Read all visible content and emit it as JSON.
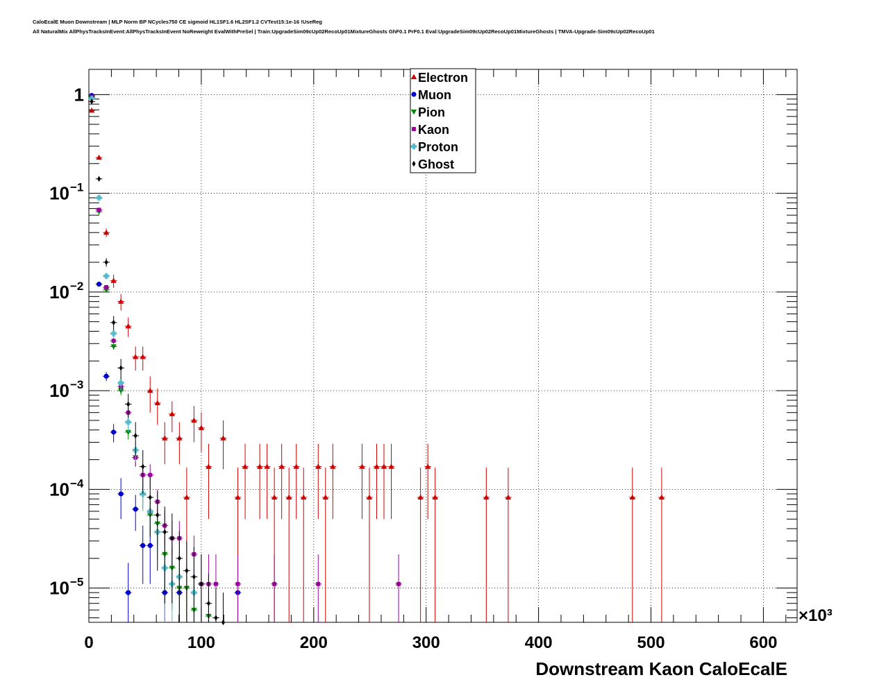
{
  "header": {
    "line1": "CaloEcalE Muon Downstream | MLP Norm BP NCycles750 CE sigmoid HL1SF1.6 HL2SF1.2 CVTest15:1e-16 !UseReg",
    "line2": "All NaturalMix AllPhysTracksInEvent:AllPhysTracksInEvent NoReweight EvalWithPreSel | Train:UpgradeSim09cUp02RecoUp01MixtureGhosts GhF0.1 PrF0.1 Eval:UpgradeSim09cUp02RecoUp01MixtureGhosts | TMVA-Upgrade-Sim09cUp02RecoUp01"
  },
  "chart_data": {
    "type": "scatter",
    "xlabel": "Downstream Kaon CaloEcalE",
    "x_multiplier": "×10³",
    "xlim": [
      0,
      630
    ],
    "ylim": [
      4.5e-06,
      1.8
    ],
    "y_scale": "log",
    "grid": true,
    "legend_placement": "top-center",
    "x_ticks": [
      "0",
      "100",
      "200",
      "300",
      "400",
      "500",
      "600"
    ],
    "y_ticks": [
      {
        "label": "1",
        "value": 1,
        "exp": ""
      },
      {
        "label": "10",
        "value": 0.1,
        "exp": "−1"
      },
      {
        "label": "10",
        "value": 0.01,
        "exp": "−2"
      },
      {
        "label": "10",
        "value": 0.001,
        "exp": "−3"
      },
      {
        "label": "10",
        "value": 0.0001,
        "exp": "−4"
      },
      {
        "label": "10",
        "value": 1e-05,
        "exp": "−5"
      }
    ],
    "series": [
      {
        "name": "Electron",
        "color": "#cc0000",
        "marker": "triangle-up",
        "x_error": 3,
        "points": [
          [
            2.5,
            0.69,
            0
          ],
          [
            9,
            0.23,
            0.01
          ],
          [
            15.5,
            0.04,
            0.004
          ],
          [
            22,
            0.013,
            0.002
          ],
          [
            28.5,
            0.008,
            0.0015
          ],
          [
            35,
            0.0045,
            0.001
          ],
          [
            41.5,
            0.0022,
            0.0006
          ],
          [
            48,
            0.0022,
            0.0006
          ],
          [
            54.5,
            0.001,
            0.0004
          ],
          [
            61,
            0.00075,
            0.0003
          ],
          [
            67.5,
            0.00033,
            0.00015
          ],
          [
            74,
            0.00058,
            0.0002
          ],
          [
            80.5,
            0.00033,
            0.00015
          ],
          [
            87,
            8.3e-05,
            8.3e-05
          ],
          [
            93.5,
            0.0005,
            0.0002
          ],
          [
            100,
            0.00042,
            0.00018
          ],
          [
            106.5,
            0.00017,
            0.00012
          ],
          [
            119.5,
            0.00033,
            0.00017
          ],
          [
            132.5,
            8.3e-05,
            8.3e-05
          ],
          [
            139,
            0.00017,
            0.00012
          ],
          [
            152,
            0.00017,
            0.00012
          ],
          [
            158.5,
            0.00017,
            0.00012
          ],
          [
            165,
            8.3e-05,
            8.3e-05
          ],
          [
            171.5,
            0.00017,
            0.00012
          ],
          [
            178,
            8.3e-05,
            8.3e-05
          ],
          [
            184.5,
            0.00017,
            0.00012
          ],
          [
            191,
            8.3e-05,
            8.3e-05
          ],
          [
            204,
            0.00017,
            0.00012
          ],
          [
            210.5,
            8.3e-05,
            8.3e-05
          ],
          [
            217,
            0.00017,
            0.00012
          ],
          [
            243,
            0.00017,
            0.00012
          ],
          [
            249.5,
            8.3e-05,
            8.3e-05
          ],
          [
            256,
            0.00017,
            0.00012
          ],
          [
            262.5,
            0.00017,
            0.00012
          ],
          [
            269,
            0.00017,
            0.00012
          ],
          [
            295,
            8.3e-05,
            8.3e-05
          ],
          [
            301.5,
            0.00017,
            0.00012
          ],
          [
            308,
            8.3e-05,
            8.3e-05
          ],
          [
            353.5,
            8.3e-05,
            8.3e-05
          ],
          [
            373,
            8.3e-05,
            8.3e-05
          ],
          [
            483.5,
            8.3e-05,
            8.3e-05
          ],
          [
            509.5,
            8.3e-05,
            8.3e-05
          ]
        ]
      },
      {
        "name": "Muon",
        "color": "#0000cc",
        "marker": "circle",
        "x_error": 3,
        "points": [
          [
            2.5,
            0.98,
            0
          ],
          [
            9,
            0.012,
            0.0004
          ],
          [
            15.5,
            0.0014,
            0.00015
          ],
          [
            22,
            0.00038,
            8e-05
          ],
          [
            28.5,
            9e-05,
            4e-05
          ],
          [
            35,
            9e-06,
            9e-06
          ],
          [
            41.5,
            6.3e-05,
            2.5e-05
          ],
          [
            48,
            2.7e-05,
            1.6e-05
          ],
          [
            54.5,
            2.7e-05,
            1.6e-05
          ],
          [
            67.5,
            9e-06,
            9e-06
          ],
          [
            80.5,
            9e-06,
            9e-06
          ],
          [
            132.5,
            9e-06,
            9e-06
          ]
        ]
      },
      {
        "name": "Pion",
        "color": "#008800",
        "marker": "triangle-down",
        "x_error": 3,
        "points": [
          [
            2.5,
            0.93,
            0
          ],
          [
            9,
            0.065,
            0.002
          ],
          [
            15.5,
            0.0105,
            0.0005
          ],
          [
            22,
            0.0028,
            0.0002
          ],
          [
            28.5,
            0.001,
            0.0001
          ],
          [
            35,
            0.00038,
            6e-05
          ],
          [
            41.5,
            0.00021,
            4e-05
          ],
          [
            48,
            8.8e-05,
            2.5e-05
          ],
          [
            54.5,
            5.5e-05,
            2e-05
          ],
          [
            61,
            4.5e-05,
            1.8e-05
          ],
          [
            67.5,
            2.2e-05,
            1.2e-05
          ],
          [
            74,
            1.6e-05,
            1e-05
          ],
          [
            80.5,
            1e-05,
            8e-06
          ],
          [
            87,
            1e-05,
            8e-06
          ],
          [
            93.5,
            6e-06,
            6e-06
          ],
          [
            106.5,
            5.2e-06,
            5.2e-06
          ]
        ]
      },
      {
        "name": "Kaon",
        "color": "#990099",
        "marker": "square",
        "x_error": 3,
        "points": [
          [
            2.5,
            0.95,
            0
          ],
          [
            9,
            0.068,
            0.002
          ],
          [
            15.5,
            0.0112,
            0.0005
          ],
          [
            22,
            0.0032,
            0.0002
          ],
          [
            28.5,
            0.0011,
            0.0001
          ],
          [
            35,
            0.0006,
            8e-05
          ],
          [
            41.5,
            0.00021,
            4e-05
          ],
          [
            48,
            0.00014,
            4e-05
          ],
          [
            54.5,
            0.00014,
            4e-05
          ],
          [
            61,
            7.5e-05,
            2.5e-05
          ],
          [
            67.5,
            4.3e-05,
            1.8e-05
          ],
          [
            74,
            3.2e-05,
            1.6e-05
          ],
          [
            80.5,
            3.2e-05,
            1.6e-05
          ],
          [
            93.5,
            2.2e-05,
            1.2e-05
          ],
          [
            100,
            1.1e-05,
            1.1e-05
          ],
          [
            106.5,
            1.1e-05,
            1.1e-05
          ],
          [
            113,
            1.1e-05,
            1.1e-05
          ],
          [
            132.5,
            1.1e-05,
            1.1e-05
          ],
          [
            165,
            1.1e-05,
            1.1e-05
          ],
          [
            204,
            1.1e-05,
            1.1e-05
          ],
          [
            275.5,
            1.1e-05,
            1.1e-05
          ]
        ]
      },
      {
        "name": "Proton",
        "color": "#55bbcc",
        "marker": "cross",
        "x_error": 3,
        "points": [
          [
            2.5,
            0.91,
            0
          ],
          [
            9,
            0.09,
            0.004
          ],
          [
            15.5,
            0.0145,
            0.0008
          ],
          [
            22,
            0.0038,
            0.0004
          ],
          [
            28.5,
            0.0012,
            0.0002
          ],
          [
            35,
            0.00048,
            0.0001
          ],
          [
            41.5,
            0.00025,
            6e-05
          ],
          [
            48,
            9e-05,
            3e-05
          ],
          [
            54.5,
            6e-05,
            2.5e-05
          ],
          [
            61,
            3.7e-05,
            1.8e-05
          ],
          [
            67.5,
            1.6e-05,
            1.2e-05
          ],
          [
            74,
            1.1e-05,
            1e-05
          ],
          [
            80.5,
            1.3e-05,
            1e-05
          ],
          [
            93.5,
            9e-06,
            9e-06
          ]
        ]
      },
      {
        "name": "Ghost",
        "color": "#000000",
        "marker": "diamond",
        "x_error": 3,
        "points": [
          [
            2.5,
            0.85,
            0
          ],
          [
            9,
            0.14,
            0.005
          ],
          [
            15.5,
            0.02,
            0.002
          ],
          [
            22,
            0.0049,
            0.0008
          ],
          [
            28.5,
            0.0017,
            0.0004
          ],
          [
            35,
            0.00073,
            0.0002
          ],
          [
            41.5,
            0.00035,
            0.00013
          ],
          [
            48,
            0.00017,
            8e-05
          ],
          [
            54.5,
            8.3e-05,
            5e-05
          ],
          [
            61,
            5.5e-05,
            4e-05
          ],
          [
            67.5,
            3.7e-05,
            3e-05
          ],
          [
            74,
            3.2e-05,
            2.5e-05
          ],
          [
            80.5,
            2e-05,
            1.8e-05
          ],
          [
            87,
            1.5e-05,
            1.5e-05
          ],
          [
            93.5,
            1.3e-05,
            1.3e-05
          ],
          [
            100,
            1.1e-05,
            1.1e-05
          ],
          [
            106.5,
            7e-06,
            7e-06
          ],
          [
            113,
            5e-06,
            5e-06
          ],
          [
            119.5,
            4.5e-06,
            4.5e-06
          ]
        ]
      }
    ]
  }
}
